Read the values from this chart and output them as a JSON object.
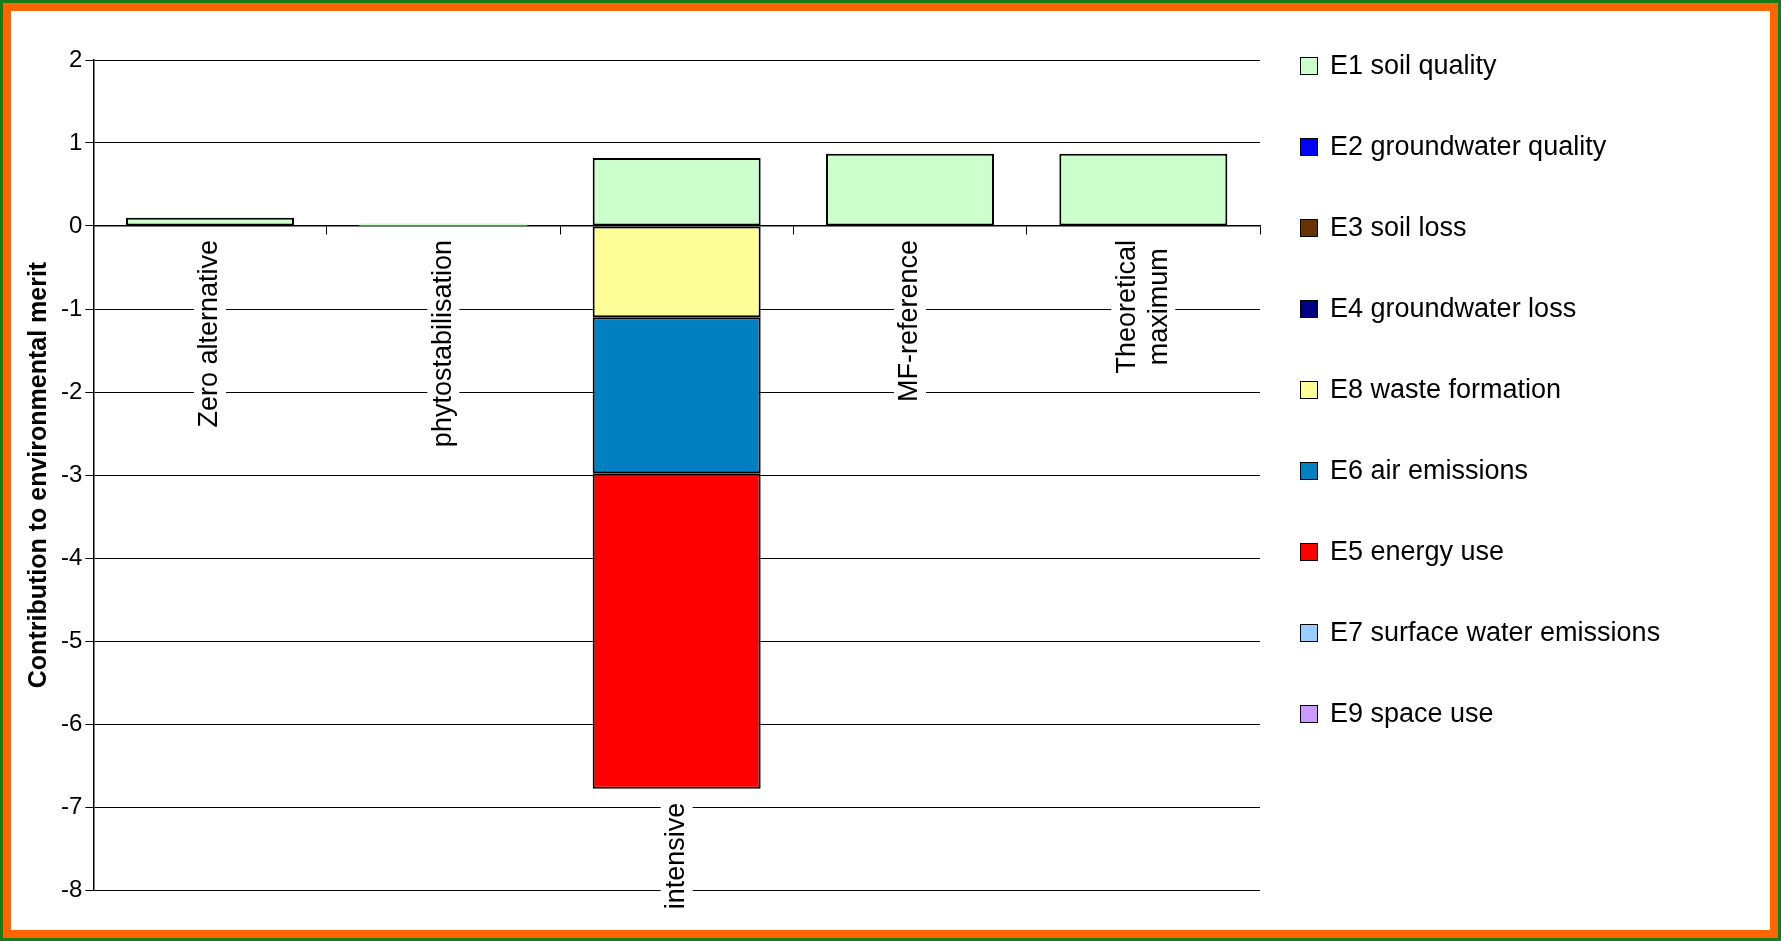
{
  "chart_data": {
    "type": "bar",
    "stacked": true,
    "ylabel": "Contribution to environmental merit",
    "categories": [
      "Zero alternative",
      "phytostabilisation",
      "intensive",
      "MF-reference",
      "Theoretical maximum"
    ],
    "series": [
      {
        "name": "E1 soil quality",
        "color": "#ccffcc",
        "values": [
          0.1,
          0.03,
          0.82,
          0.87,
          0.87
        ]
      },
      {
        "name": "E2 groundwater quality",
        "color": "#0000ff",
        "values": [
          null,
          null,
          null,
          null,
          null
        ]
      },
      {
        "name": "E3 soil loss",
        "color": "#663300",
        "values": [
          null,
          null,
          null,
          null,
          null
        ]
      },
      {
        "name": "E4 groundwater loss",
        "color": "#000080",
        "values": [
          null,
          null,
          null,
          null,
          null
        ]
      },
      {
        "name": "E8 waste formation",
        "color": "#ffff99",
        "values": [
          null,
          null,
          -1.1,
          null,
          null
        ]
      },
      {
        "name": "E6 air emissions",
        "color": "#0080c0",
        "values": [
          null,
          null,
          -1.88,
          null,
          null
        ]
      },
      {
        "name": "E5 energy use",
        "color": "#ff0000",
        "values": [
          null,
          null,
          -3.8,
          null,
          null
        ]
      },
      {
        "name": "E7 surface water emissions",
        "color": "#99ccff",
        "values": [
          null,
          null,
          null,
          null,
          null
        ]
      },
      {
        "name": "E9 space use",
        "color": "#cc99ff",
        "values": [
          null,
          null,
          null,
          null,
          null
        ]
      }
    ],
    "ylim": [
      -8,
      2
    ],
    "yticks": [
      -8,
      -7,
      -6,
      -5,
      -4,
      -3,
      -2,
      -1,
      0,
      1,
      2
    ],
    "grid": "y",
    "legend": "right"
  }
}
